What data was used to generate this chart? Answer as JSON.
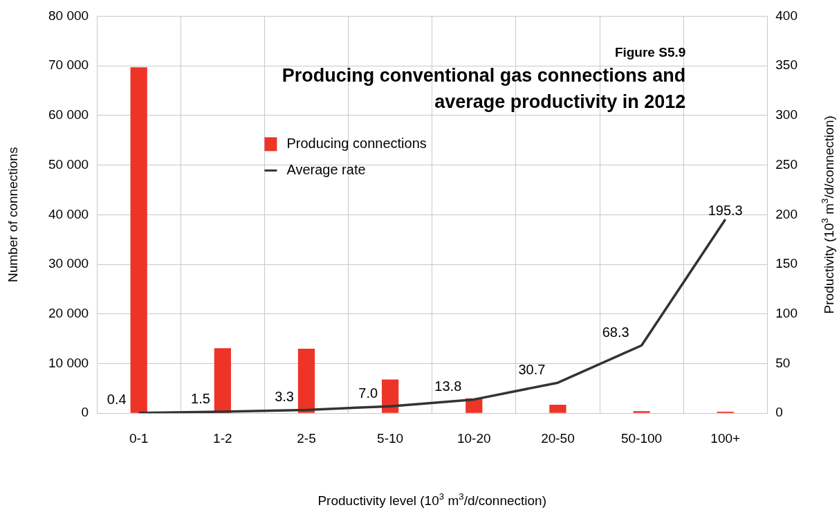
{
  "chart_data": {
    "type": "bar",
    "title": "Producing conventional gas connections and average productivity in 2012",
    "subtitle": "Figure S5.9",
    "xlabel": "Productivity level (10$^{3}$ m$^{3}$/d/connection)",
    "ylabel": "Number of connections",
    "y2label": "Productivity (10$^{3}$ m$^{3}$/d/connection)",
    "categories": [
      "0-1",
      "1-2",
      "2-5",
      "5-10",
      "10-20",
      "20-50",
      "50-100",
      "100+"
    ],
    "series": [
      {
        "name": "Producing connections",
        "color": "#ee3427",
        "values": [
          69700,
          13100,
          13000,
          6800,
          3000,
          1700,
          400,
          300
        ]
      },
      {
        "name": "Average rate",
        "type": "line",
        "axis": "y2",
        "color": "#333333",
        "values": [
          0.4,
          1.5,
          3.3,
          7.0,
          13.8,
          30.7,
          68.3,
          195.3
        ],
        "value_labels": [
          "0.4",
          "1.5",
          "3.3",
          "7.0",
          "13.8",
          "30.7",
          "68.3",
          "195.3"
        ]
      }
    ],
    "ylim": [
      0,
      80000
    ],
    "yticks": [
      {
        "value": 0,
        "label": "0"
      },
      {
        "value": 10000,
        "label": "10 000"
      },
      {
        "value": 20000,
        "label": "20 000"
      },
      {
        "value": 30000,
        "label": "30 000"
      },
      {
        "value": 40000,
        "label": "40 000"
      },
      {
        "value": 50000,
        "label": "50 000"
      },
      {
        "value": 60000,
        "label": "60 000"
      },
      {
        "value": 70000,
        "label": "70 000"
      },
      {
        "value": 80000,
        "label": "80 000"
      }
    ],
    "y2lim": [
      0,
      400
    ],
    "y2ticks": [
      0,
      50,
      100,
      150,
      200,
      250,
      300,
      350,
      400
    ],
    "grid": true,
    "legend": "top",
    "marker": "none",
    "line_style": "solid"
  }
}
